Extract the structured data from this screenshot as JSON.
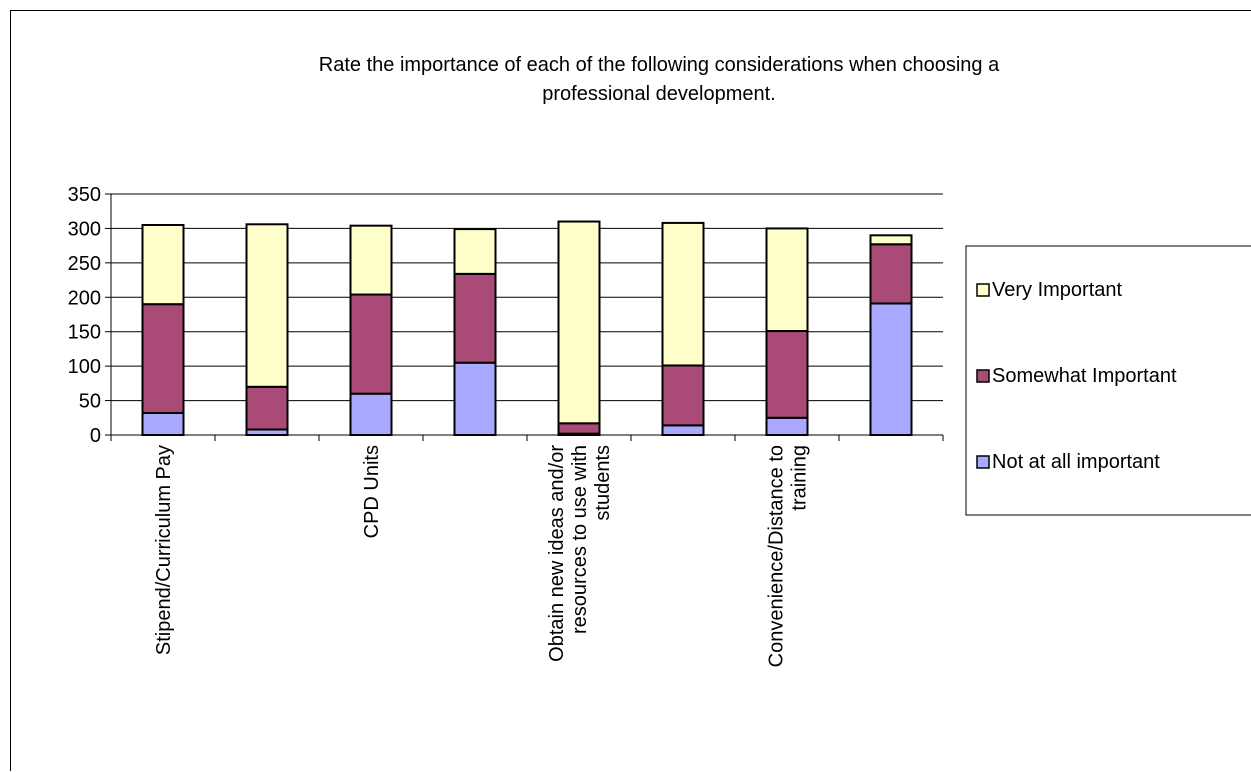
{
  "chart_data": {
    "type": "bar",
    "stacked": true,
    "title": "Rate the importance of each of the following considerations when choosing a professional development.",
    "xlabel": "",
    "ylabel": "",
    "ylim": [
      0,
      350
    ],
    "yticks": [
      0,
      50,
      100,
      150,
      200,
      250,
      300,
      350
    ],
    "grid": true,
    "legend_position": "right",
    "categories": [
      "Stipend/Curriculum Pay",
      "",
      "CPD Units",
      "",
      "Obtain new ideas and/or resources to use with students",
      "",
      "Convenience/Distance to training",
      ""
    ],
    "category_label_lines": [
      [
        "Stipend/Curriculum Pay"
      ],
      [],
      [
        "CPD Units"
      ],
      [],
      [
        "Obtain new ideas and/or",
        "resources to use with",
        "students"
      ],
      [],
      [
        "Convenience/Distance to",
        "training"
      ],
      []
    ],
    "series": [
      {
        "name": "Not at all important",
        "color": "#A9A9FF",
        "values": [
          32,
          8,
          60,
          105,
          2,
          14,
          25,
          191
        ]
      },
      {
        "name": "Somewhat Important",
        "color": "#AA4A77",
        "values": [
          158,
          62,
          144,
          129,
          15,
          87,
          126,
          86
        ]
      },
      {
        "name": "Very Important",
        "color": "#FFFFCC",
        "values": [
          115,
          236,
          100,
          65,
          293,
          207,
          149,
          13
        ]
      }
    ],
    "legend_order": [
      "Very Important",
      "Somewhat Important",
      "Not at all important"
    ]
  }
}
